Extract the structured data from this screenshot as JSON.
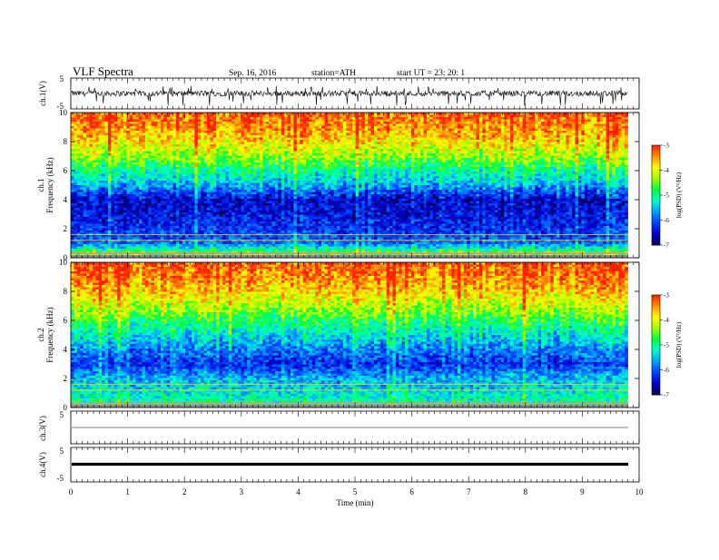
{
  "header": {
    "title": "VLF  Spectra",
    "date": "Sep. 16, 2016",
    "station": "station=ATH",
    "start_ut": "start  UT  =    23: 20: 1"
  },
  "chart_data": [
    {
      "type": "line",
      "panel": "ch1-waveform",
      "ylabel": "ch.1(V)",
      "ylim": [
        -5,
        5
      ],
      "yticks": [
        "5",
        "-5"
      ],
      "series": [
        {
          "name": "ch.1",
          "description_level": "noisy waveform centred near 0 V, amplitude about ±1.5 V with spikes to -4 V",
          "baseline": 0,
          "amplitude": 1.5
        }
      ]
    },
    {
      "type": "heatmap",
      "panel": "ch1-spectrogram",
      "ylabel_channel": "ch.1",
      "ylabel": "Frequency  (kHz)",
      "ylim": [
        0,
        10
      ],
      "yticks": [
        "0",
        "2",
        "4",
        "6",
        "8",
        "10"
      ],
      "band_profile": [
        {
          "freq_khz": 0.3,
          "log_psd": -4.5
        },
        {
          "freq_khz": 1.0,
          "log_psd": -5.9
        },
        {
          "freq_khz": 2.0,
          "log_psd": -6.2
        },
        {
          "freq_khz": 3.0,
          "log_psd": -6.4
        },
        {
          "freq_khz": 4.0,
          "log_psd": -6.5
        },
        {
          "freq_khz": 5.0,
          "log_psd": -5.6
        },
        {
          "freq_khz": 6.0,
          "log_psd": -5.0
        },
        {
          "freq_khz": 7.0,
          "log_psd": -4.3
        },
        {
          "freq_khz": 8.0,
          "log_psd": -3.8
        },
        {
          "freq_khz": 9.0,
          "log_psd": -3.4
        },
        {
          "freq_khz": 10.0,
          "log_psd": -3.2
        }
      ],
      "colorbar": {
        "range": [
          -7,
          -3
        ],
        "ticks": [
          "-3",
          "-4",
          "-5",
          "-6",
          "-7"
        ],
        "label": "log(PSD) (V²/Hz)"
      }
    },
    {
      "type": "heatmap",
      "panel": "ch2-spectrogram",
      "ylabel_channel": "ch.2",
      "ylabel": "Frequency  (kHz)",
      "ylim": [
        0,
        10
      ],
      "yticks": [
        "0",
        "2",
        "4",
        "6",
        "8",
        "10"
      ],
      "band_profile": [
        {
          "freq_khz": 0.3,
          "log_psd": -5.0
        },
        {
          "freq_khz": 1.0,
          "log_psd": -5.3
        },
        {
          "freq_khz": 2.0,
          "log_psd": -5.6
        },
        {
          "freq_khz": 3.0,
          "log_psd": -6.2
        },
        {
          "freq_khz": 4.0,
          "log_psd": -5.8
        },
        {
          "freq_khz": 5.0,
          "log_psd": -5.3
        },
        {
          "freq_khz": 6.0,
          "log_psd": -4.8
        },
        {
          "freq_khz": 7.0,
          "log_psd": -4.2
        },
        {
          "freq_khz": 8.0,
          "log_psd": -3.7
        },
        {
          "freq_khz": 9.0,
          "log_psd": -3.4
        },
        {
          "freq_khz": 10.0,
          "log_psd": -3.2
        }
      ],
      "colorbar": {
        "range": [
          -7,
          -3
        ],
        "ticks": [
          "-3",
          "-4",
          "-5",
          "-6",
          "-7"
        ],
        "label": "log(PSD) (V²/Hz)"
      }
    },
    {
      "type": "line",
      "panel": "ch3-waveform",
      "ylabel": "ch.3(V)",
      "ylim": [
        -5,
        5
      ],
      "yticks": [
        "5",
        "-5"
      ],
      "series": [
        {
          "name": "ch.3",
          "baseline": 0,
          "amplitude": 0
        }
      ]
    },
    {
      "type": "line",
      "panel": "ch4-waveform",
      "ylabel": "ch.4(V)",
      "ylim": [
        -5,
        5
      ],
      "yticks": [
        "5",
        "-5"
      ],
      "series": [
        {
          "name": "ch.4",
          "baseline": 0,
          "amplitude": 0.1
        }
      ]
    }
  ],
  "x_axis": {
    "label": "Time  (min)",
    "range": [
      0,
      10
    ],
    "ticks": [
      "0",
      "1",
      "2",
      "3",
      "4",
      "5",
      "6",
      "7",
      "8",
      "9",
      "10"
    ],
    "data_end_min": 9.8
  },
  "colors": {
    "colormap": [
      "#000050",
      "#0000c8",
      "#0040ff",
      "#00a0ff",
      "#00ffd0",
      "#00ff40",
      "#a0ff00",
      "#ffff00",
      "#ff9000",
      "#ff2000",
      "#ffffff"
    ]
  }
}
